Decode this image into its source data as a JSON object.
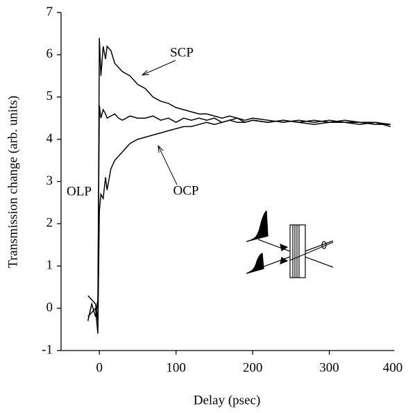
{
  "chart_data": {
    "type": "line",
    "x_label": "Delay (psec)",
    "y_label": "Transmission change (arb. units)",
    "x": [
      -15,
      -10,
      -5,
      -2,
      0,
      2,
      5,
      8,
      10,
      15,
      20,
      25,
      30,
      40,
      50,
      60,
      70,
      80,
      90,
      100,
      110,
      120,
      130,
      140,
      150,
      160,
      170,
      180,
      190,
      200,
      220,
      240,
      260,
      280,
      300,
      320,
      340,
      360,
      380
    ],
    "series": [
      {
        "name": "SCP",
        "color": "#000000",
        "values": [
          0.3,
          0.2,
          0.1,
          -0.3,
          6.4,
          5.5,
          6.2,
          5.9,
          6.2,
          6.1,
          5.8,
          5.7,
          5.6,
          5.5,
          5.3,
          5.2,
          5.0,
          4.9,
          4.85,
          4.75,
          4.7,
          4.65,
          4.6,
          4.6,
          4.55,
          4.5,
          4.55,
          4.5,
          4.45,
          4.5,
          4.45,
          4.4,
          4.45,
          4.4,
          4.45,
          4.4,
          4.4,
          4.35,
          4.35
        ]
      },
      {
        "name": "OLP",
        "color": "#000000",
        "values": [
          -0.3,
          0.1,
          -0.2,
          0.2,
          4.8,
          4.5,
          4.7,
          4.6,
          4.5,
          4.55,
          4.6,
          4.5,
          4.45,
          4.55,
          4.5,
          4.5,
          4.55,
          4.45,
          4.5,
          4.4,
          4.5,
          4.45,
          4.5,
          4.45,
          4.5,
          4.4,
          4.45,
          4.5,
          4.4,
          4.45,
          4.4,
          4.45,
          4.4,
          4.45,
          4.4,
          4.45,
          4.4,
          4.4,
          4.35
        ]
      },
      {
        "name": "OCP",
        "color": "#000000",
        "values": [
          -0.2,
          -0.1,
          0,
          -0.6,
          2.3,
          2.7,
          2.6,
          3.1,
          2.8,
          3.3,
          3.5,
          3.6,
          3.7,
          3.9,
          4.0,
          4.05,
          4.1,
          4.15,
          4.2,
          4.25,
          4.3,
          4.3,
          4.35,
          4.4,
          4.35,
          4.4,
          4.45,
          4.4,
          4.4,
          4.45,
          4.4,
          4.45,
          4.4,
          4.35,
          4.4,
          4.4,
          4.35,
          4.4,
          4.3
        ]
      }
    ],
    "xlim": [
      -50,
      400
    ],
    "xticks": [
      0,
      100,
      200,
      300,
      400
    ],
    "ylim": [
      -1,
      7
    ],
    "yticks": [
      -1,
      0,
      1,
      2,
      3,
      4,
      5,
      6,
      7
    ],
    "grid": false
  }
}
